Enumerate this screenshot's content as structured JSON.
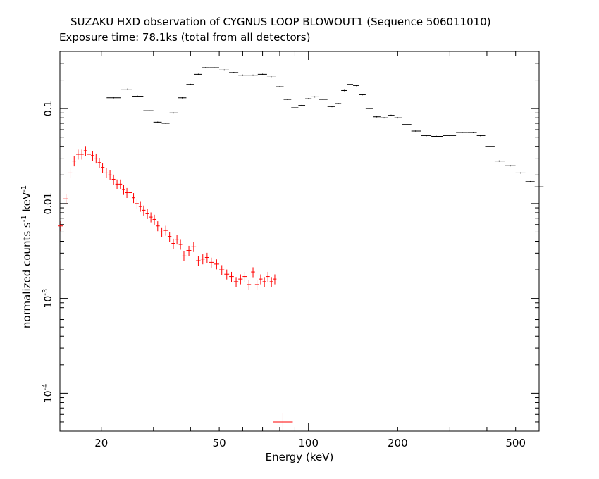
{
  "header": {
    "title": "SUZAKU HXD observation of CYGNUS LOOP BLOWOUT1 (Sequence 506011010)",
    "subtitle": "Exposure time: 78.1ks (total from all detectors)"
  },
  "chart_data": {
    "type": "scatter",
    "xlabel": "Energy (keV)",
    "ylabel_main": "normalized counts s",
    "ylabel_exp1": "-1",
    "ylabel_mid": " keV",
    "ylabel_exp2": "-1",
    "xscale": "log",
    "yscale": "log",
    "xlim": [
      14.5,
      600
    ],
    "ylim": [
      4e-05,
      0.4
    ],
    "x_tick_labels": [
      "20",
      "50",
      "100",
      "200",
      "500"
    ],
    "y_tick_labels": [
      {
        "value": 0.1,
        "text": "0.1"
      },
      {
        "value": 0.01,
        "text": "0.01"
      },
      {
        "value": 0.001,
        "base": "10",
        "exp": "-3"
      },
      {
        "value": 0.0001,
        "base": "10",
        "exp": "-4"
      }
    ],
    "grid": false,
    "legend": "none",
    "series": [
      {
        "color": "#000000",
        "style": "crosses",
        "points": [
          [
            22,
            0.13
          ],
          [
            24.5,
            0.16
          ],
          [
            26.5,
            0.135
          ],
          [
            29,
            0.095
          ],
          [
            31,
            0.072
          ],
          [
            33,
            0.07
          ],
          [
            35,
            0.09
          ],
          [
            37.5,
            0.13
          ],
          [
            40,
            0.18
          ],
          [
            42.5,
            0.23
          ],
          [
            45,
            0.27
          ],
          [
            48,
            0.27
          ],
          [
            52,
            0.255
          ],
          [
            56,
            0.24
          ],
          [
            60,
            0.225
          ],
          [
            65,
            0.225
          ],
          [
            70,
            0.23
          ],
          [
            75,
            0.215
          ],
          [
            80,
            0.17
          ],
          [
            85,
            0.125
          ],
          [
            90,
            0.102
          ],
          [
            95,
            0.108
          ],
          [
            100,
            0.127
          ],
          [
            105,
            0.133
          ],
          [
            112,
            0.125
          ],
          [
            120,
            0.105
          ],
          [
            126,
            0.113
          ],
          [
            132,
            0.155
          ],
          [
            138,
            0.18
          ],
          [
            145,
            0.175
          ],
          [
            152,
            0.14
          ],
          [
            160,
            0.1
          ],
          [
            170,
            0.082
          ],
          [
            180,
            0.08
          ],
          [
            190,
            0.085
          ],
          [
            200,
            0.08
          ],
          [
            215,
            0.068
          ],
          [
            230,
            0.058
          ],
          [
            250,
            0.052
          ],
          [
            270,
            0.051
          ],
          [
            300,
            0.052
          ],
          [
            330,
            0.056
          ],
          [
            360,
            0.056
          ],
          [
            380,
            0.052
          ],
          [
            410,
            0.04
          ],
          [
            440,
            0.028
          ],
          [
            480,
            0.025
          ],
          [
            520,
            0.021
          ],
          [
            560,
            0.017
          ],
          [
            600,
            0.015
          ]
        ]
      },
      {
        "color": "#ff0000",
        "style": "crosses",
        "points": [
          [
            14.6,
            0.0058
          ],
          [
            15.2,
            0.0112
          ],
          [
            15.7,
            0.021
          ],
          [
            16.2,
            0.028
          ],
          [
            16.7,
            0.033
          ],
          [
            17.2,
            0.033
          ],
          [
            17.7,
            0.036
          ],
          [
            18.2,
            0.033
          ],
          [
            18.7,
            0.032
          ],
          [
            19.2,
            0.03
          ],
          [
            19.7,
            0.027
          ],
          [
            20.2,
            0.024
          ],
          [
            20.8,
            0.021
          ],
          [
            21.4,
            0.02
          ],
          [
            22,
            0.018
          ],
          [
            22.6,
            0.016
          ],
          [
            23.2,
            0.016
          ],
          [
            23.8,
            0.014
          ],
          [
            24.4,
            0.013
          ],
          [
            25,
            0.013
          ],
          [
            25.7,
            0.0115
          ],
          [
            26.4,
            0.01
          ],
          [
            27.1,
            0.0093
          ],
          [
            27.8,
            0.0085
          ],
          [
            28.6,
            0.0078
          ],
          [
            29.4,
            0.0072
          ],
          [
            30.2,
            0.0068
          ],
          [
            31,
            0.0058
          ],
          [
            32,
            0.005
          ],
          [
            33,
            0.0052
          ],
          [
            34,
            0.0045
          ],
          [
            35,
            0.0038
          ],
          [
            36,
            0.0042
          ],
          [
            37,
            0.0037
          ],
          [
            38,
            0.0028
          ],
          [
            39.5,
            0.0032
          ],
          [
            41,
            0.0035
          ],
          [
            42.5,
            0.0025
          ],
          [
            44,
            0.0026
          ],
          [
            45.5,
            0.0027
          ],
          [
            47,
            0.0024
          ],
          [
            49,
            0.0023
          ],
          [
            51,
            0.002
          ],
          [
            53,
            0.0018
          ],
          [
            55,
            0.0017
          ],
          [
            57,
            0.0015
          ],
          [
            59,
            0.0016
          ],
          [
            61,
            0.0017
          ],
          [
            63,
            0.0014
          ],
          [
            65,
            0.0019
          ],
          [
            67,
            0.0014
          ],
          [
            69,
            0.0016
          ],
          [
            71,
            0.0015
          ],
          [
            73,
            0.0017
          ],
          [
            75,
            0.0015
          ],
          [
            77,
            0.0016
          ]
        ]
      }
    ],
    "isolated_marker": {
      "x": 82,
      "y": 5e-05,
      "color": "#ff0000"
    }
  }
}
